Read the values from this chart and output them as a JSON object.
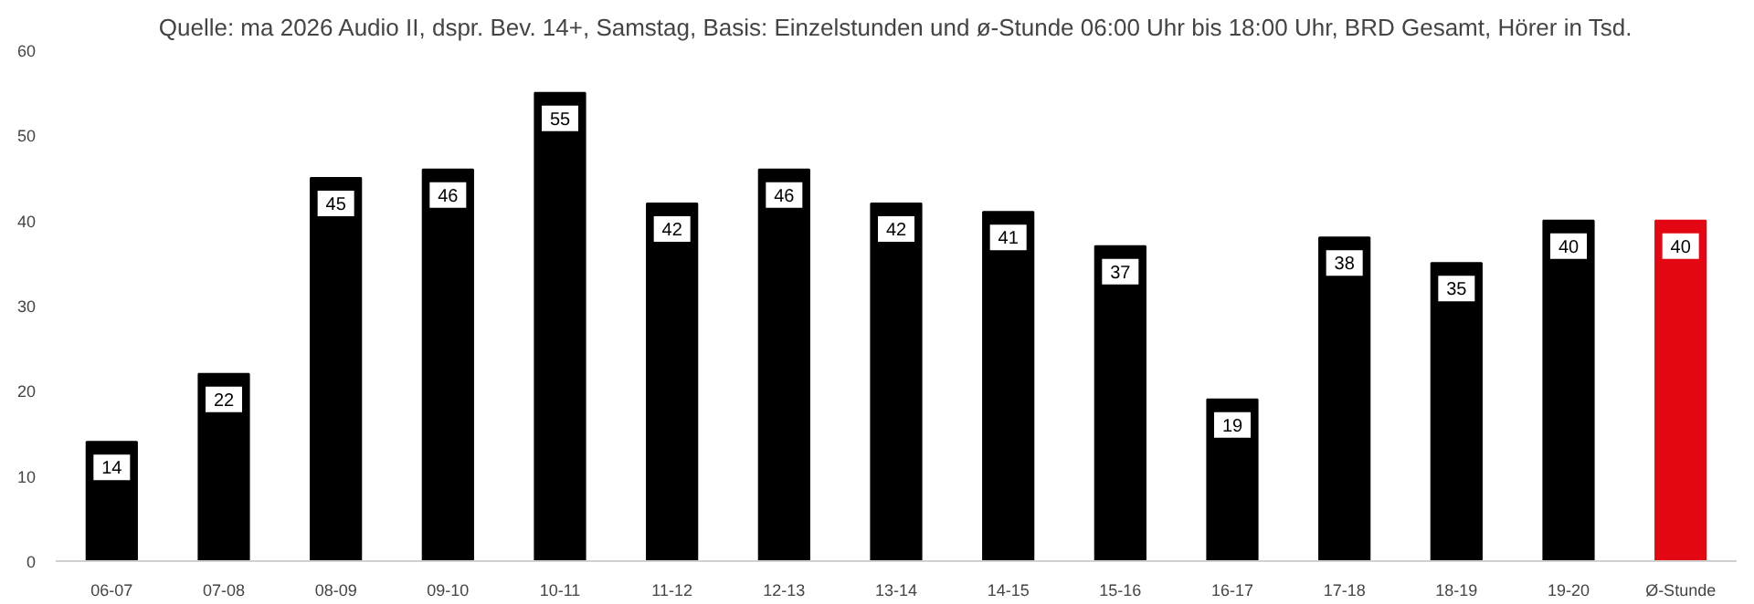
{
  "chart_data": {
    "type": "bar",
    "title": "Quelle: ma 2026 Audio II, dspr. Bev. 14+, Samstag, Basis: Einzelstunden und ø-Stunde 06:00 Uhr bis 18:00 Uhr, BRD Gesamt, Hörer in Tsd.",
    "categories": [
      "06-07",
      "07-08",
      "08-09",
      "09-10",
      "10-11",
      "11-12",
      "12-13",
      "13-14",
      "14-15",
      "15-16",
      "16-17",
      "17-18",
      "18-19",
      "19-20",
      "Ø-Stunde"
    ],
    "values": [
      14,
      22,
      45,
      46,
      55,
      42,
      46,
      42,
      41,
      37,
      19,
      38,
      35,
      40,
      40
    ],
    "colors": [
      "#000000",
      "#000000",
      "#000000",
      "#000000",
      "#000000",
      "#000000",
      "#000000",
      "#000000",
      "#000000",
      "#000000",
      "#000000",
      "#000000",
      "#000000",
      "#000000",
      "#e30613"
    ],
    "ylim": [
      0,
      60
    ],
    "yticks": [
      0,
      10,
      20,
      30,
      40,
      50,
      60
    ],
    "grid": false,
    "data_labels": true
  }
}
